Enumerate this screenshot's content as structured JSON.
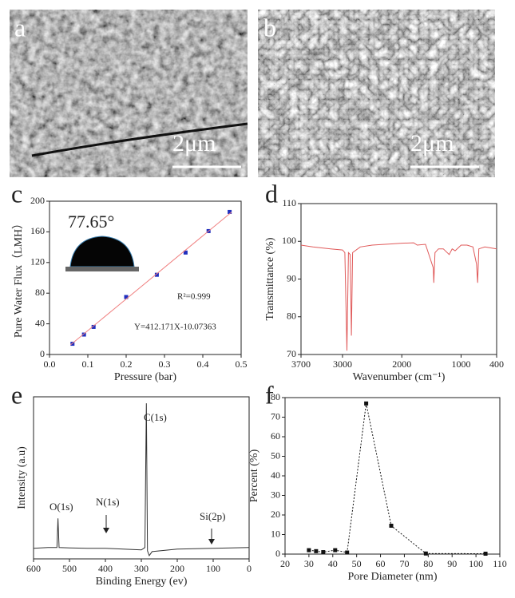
{
  "images": [
    {
      "label": "a",
      "scale": "2μm"
    },
    {
      "label": "b",
      "scale": "2μm"
    }
  ],
  "chart_data": [
    {
      "type": "scatter",
      "label": "c",
      "x_label": "Pressure (bar)",
      "y_label": "Pure Water Flux（LMH）",
      "annotations": [
        "77.65°",
        "R²=0.999",
        "Y=412.171X-10.07363"
      ],
      "xlim": [
        0,
        0.5
      ],
      "xticks": [
        {
          "value": 0,
          "label": "0.0"
        },
        0.1,
        0.2,
        0.3,
        0.4,
        0.5
      ],
      "ylim": [
        0,
        200
      ],
      "yticks": [
        0,
        40,
        80,
        120,
        160,
        200
      ],
      "series": [
        {
          "color": "#1f2fbf",
          "marker": "square",
          "line": "none",
          "x": [
            0.06,
            0.09,
            0.115,
            0.2,
            0.28,
            0.355,
            0.415,
            0.47
          ],
          "values": [
            14,
            26,
            36,
            75,
            104,
            133,
            161,
            186
          ]
        },
        {
          "color": "#f08080",
          "marker": "none",
          "line": "solid",
          "x": [
            0.055,
            0.475
          ],
          "values": [
            12.6,
            185.7
          ]
        }
      ]
    },
    {
      "type": "line",
      "label": "d",
      "x_label": "Wavenumber (cm⁻¹)",
      "y_label": "Transmittance (%)",
      "xlim": [
        3700,
        400
      ],
      "xticks": [
        3700,
        3000,
        2000,
        1000,
        400
      ],
      "ylim": [
        70,
        110
      ],
      "yticks": [
        70,
        80,
        90,
        100,
        110
      ],
      "series": [
        {
          "color": "#e05a5a",
          "marker": "none",
          "line": "solid",
          "x": [
            3700,
            3500,
            3200,
            3000,
            2960,
            2925,
            2900,
            2870,
            2850,
            2830,
            2700,
            2500,
            2200,
            2000,
            1800,
            1740,
            1600,
            1470,
            1460,
            1440,
            1380,
            1300,
            1200,
            1150,
            1100,
            1000,
            900,
            800,
            740,
            720,
            700,
            600,
            400
          ],
          "values": [
            99,
            98.5,
            98,
            97.7,
            97,
            71,
            97,
            96.5,
            75,
            97,
            98.5,
            99,
            99.3,
            99.5,
            99.6,
            99,
            99.2,
            93,
            89,
            97,
            98,
            98,
            96.5,
            98,
            97.5,
            99,
            99,
            98.5,
            94,
            89,
            98,
            98.5,
            98
          ]
        }
      ]
    },
    {
      "type": "line",
      "label": "e",
      "x_label": "Binding Energy (ev)",
      "y_label": "Intensity (a.u)",
      "annotations": [
        "C(1s)",
        "O(1s)",
        "N(1s)",
        "Si(2p)"
      ],
      "xlim": [
        600,
        0
      ],
      "xticks": [
        600,
        500,
        400,
        300,
        200,
        100,
        0
      ],
      "ylim": [
        0,
        100
      ],
      "series": [
        {
          "color": "#333333",
          "marker": "none",
          "line": "solid",
          "x": [
            600,
            560,
            535,
            532,
            529,
            500,
            450,
            400,
            350,
            300,
            290,
            286,
            283,
            278,
            270,
            200,
            150,
            100,
            50,
            0
          ],
          "values": [
            6.5,
            7,
            7,
            25,
            7,
            6.8,
            6.5,
            6.5,
            6,
            5.5,
            7,
            96,
            5,
            2,
            4.5,
            6,
            6.3,
            6.5,
            6.8,
            7
          ]
        }
      ]
    },
    {
      "type": "line",
      "label": "f",
      "x_label": "Pore Diameter (nm)",
      "y_label": "Percent (%)",
      "xlim": [
        20,
        110
      ],
      "xticks": [
        20,
        30,
        40,
        50,
        60,
        70,
        80,
        90,
        100,
        110
      ],
      "ylim": [
        0,
        80
      ],
      "yticks": [
        0,
        10,
        20,
        30,
        40,
        50,
        60,
        70,
        80
      ],
      "series": [
        {
          "color": "#111111",
          "marker": "square",
          "line": "dotted",
          "x": [
            30,
            33,
            36,
            41,
            46,
            54,
            64.5,
            79,
            104
          ],
          "values": [
            2,
            1.5,
            1,
            2,
            0.8,
            77,
            14.5,
            0.3,
            0.2
          ]
        }
      ]
    }
  ]
}
